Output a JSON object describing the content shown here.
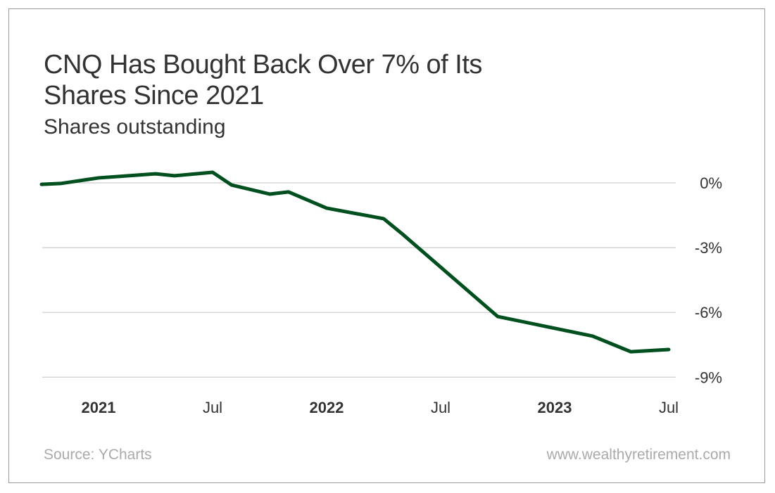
{
  "title_line1": "CNQ Has Bought Back Over 7% of Its",
  "title_line2": "Shares Since 2021",
  "subtitle": "Shares outstanding",
  "source": "Source: YCharts",
  "website": "www.wealthyretirement.com",
  "colors": {
    "line": "#00501f",
    "grid": "#cccccc",
    "text": "#333333",
    "footer": "#aaaaaa",
    "border": "#9a9a9a"
  },
  "chart_data": {
    "type": "line",
    "title": "CNQ Has Bought Back Over 7% of Its Shares Since 2021",
    "subtitle": "Shares outstanding",
    "ylim": [
      -9,
      0.6
    ],
    "grid": true,
    "y_ticks": [
      {
        "value": 0,
        "label": "0%"
      },
      {
        "value": -3,
        "label": "-3%"
      },
      {
        "value": -6,
        "label": "-6%"
      },
      {
        "value": -9,
        "label": "-9%"
      }
    ],
    "x_ticks": [
      {
        "date": "2021-01",
        "label": "2021",
        "bold": true
      },
      {
        "date": "2021-07",
        "label": "Jul",
        "bold": false
      },
      {
        "date": "2022-01",
        "label": "2022",
        "bold": true
      },
      {
        "date": "2022-07",
        "label": "Jul",
        "bold": false
      },
      {
        "date": "2023-01",
        "label": "2023",
        "bold": true
      },
      {
        "date": "2023-07",
        "label": "Jul",
        "bold": false
      }
    ],
    "series": [
      {
        "x": [
          "2020-10",
          "2020-11",
          "2021-01",
          "2021-04",
          "2021-05",
          "2021-07",
          "2021-08",
          "2021-10",
          "2021-11",
          "2022-01",
          "2022-04",
          "2022-05",
          "2022-10",
          "2023-03",
          "2023-05",
          "2023-07"
        ],
        "y": [
          -0.07,
          -0.03,
          0.23,
          0.42,
          0.33,
          0.49,
          -0.1,
          -0.52,
          -0.42,
          -1.17,
          -1.66,
          -2.38,
          -6.19,
          -7.1,
          -7.82,
          -7.72
        ]
      }
    ]
  }
}
